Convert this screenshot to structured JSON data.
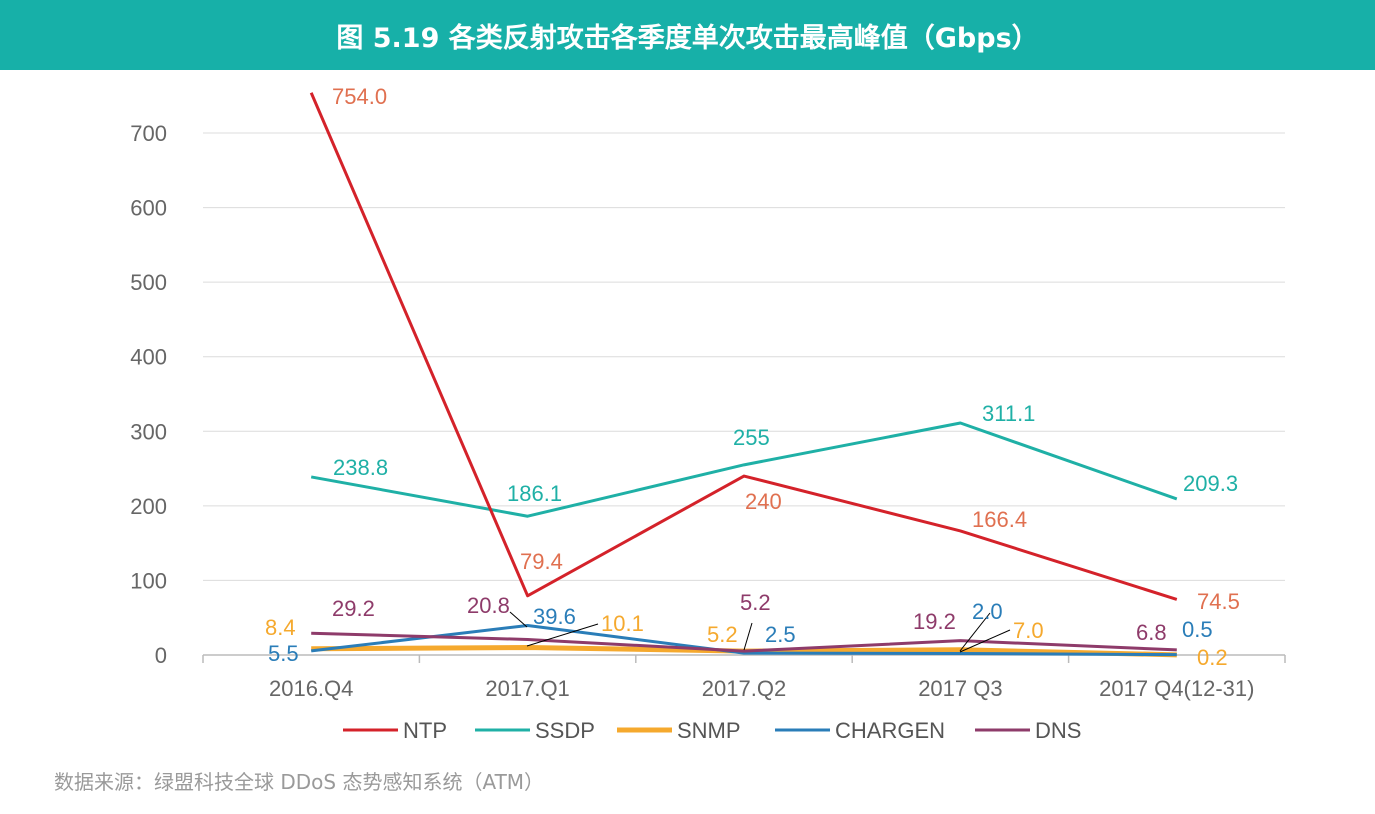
{
  "chart_data": {
    "type": "line",
    "title": "图 5.19 各类反射攻击各季度单次攻击最高峰值（Gbps）",
    "xlabel": "",
    "ylabel": "",
    "categories": [
      "2016.Q4",
      "2017.Q1",
      "2017.Q2",
      "2017 Q3",
      "2017 Q4(12-31)"
    ],
    "ylim": [
      0,
      700
    ],
    "yticks": [
      "0",
      "100",
      "200",
      "300",
      "400",
      "500",
      "600",
      "700"
    ],
    "grid": true,
    "legend": "bottom",
    "series": [
      {
        "name": "NTP",
        "color": "#d4222a",
        "label_color": "#e07050",
        "values": [
          754.0,
          79.4,
          240,
          166.4,
          74.5
        ],
        "labels": [
          "754.0",
          "79.4",
          "240",
          "166.4",
          "74.5"
        ]
      },
      {
        "name": "SSDP",
        "color": "#1fb0a6",
        "label_color": "#1fb0a6",
        "values": [
          238.8,
          186.1,
          255,
          311.1,
          209.3
        ],
        "labels": [
          "238.8",
          "186.1",
          "255",
          "311.1",
          "209.3"
        ]
      },
      {
        "name": "SNMP",
        "color": "#f5a92e",
        "label_color": "#f5a92e",
        "values": [
          8.4,
          10.1,
          5.2,
          7.0,
          0.2
        ],
        "labels": [
          "8.4",
          "10.1",
          "5.2",
          "7.0",
          "0.2"
        ]
      },
      {
        "name": "CHARGEN",
        "color": "#2a7db8",
        "label_color": "#2a7db8",
        "values": [
          5.5,
          39.6,
          2.5,
          2.0,
          0.5
        ],
        "labels": [
          "5.5",
          "39.6",
          "2.5",
          "2.0",
          "0.5"
        ]
      },
      {
        "name": "DNS",
        "color": "#8e3b6a",
        "label_color": "#8e3b6a",
        "values": [
          29.2,
          20.8,
          5.2,
          19.2,
          6.8
        ],
        "labels": [
          "29.2",
          "20.8",
          "5.2",
          "19.2",
          "6.8"
        ]
      }
    ]
  },
  "source": "数据来源：绿盟科技全球 DDoS 态势感知系统（ATM）"
}
